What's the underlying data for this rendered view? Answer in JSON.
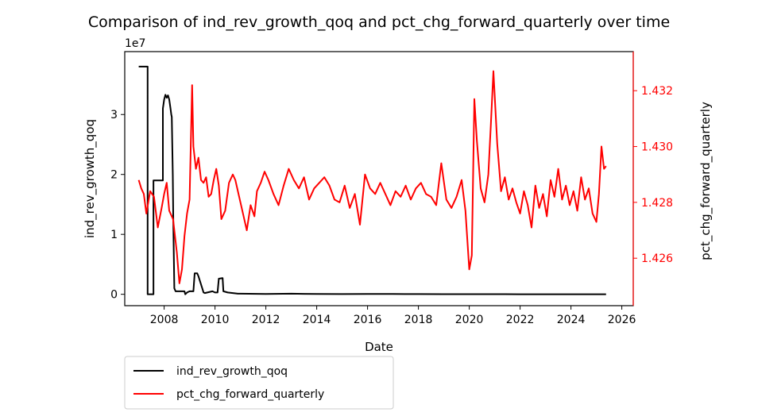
{
  "chart_data": {
    "type": "line",
    "title": "Comparison of ind_rev_growth_qoq and pct_chg_forward_quarterly over time",
    "xlabel": "Date",
    "ylabel_left": "ind_rev_growth_qoq",
    "ylabel_right": "pct_chg_forward_quarterly",
    "left_axis_offset_text": "1e7",
    "xlim": [
      2006.45,
      2026.45
    ],
    "ylim_left": [
      -1.9,
      40.5
    ],
    "ylim_right": [
      1.4243,
      1.4334
    ],
    "x_ticks": [
      "2008",
      "2010",
      "2012",
      "2014",
      "2016",
      "2018",
      "2020",
      "2022",
      "2024",
      "2026"
    ],
    "y_ticks_left": [
      "0",
      "1",
      "2",
      "3"
    ],
    "y_ticks_right": [
      "1.426",
      "1.428",
      "1.430",
      "1.432"
    ],
    "legend_position": "below-left",
    "grid": false,
    "colors": {
      "series_1": "#000000",
      "series_2": "#ff0000",
      "right_axis": "#ff0000"
    },
    "series": [
      {
        "name": "ind_rev_growth_qoq",
        "axis": "left",
        "color": "#000000",
        "x": [
          2007.0,
          2007.35,
          2007.35,
          2007.58,
          2007.58,
          2007.95,
          2007.95,
          2008.0,
          2008.05,
          2008.1,
          2008.15,
          2008.2,
          2008.25,
          2008.28,
          2008.3,
          2008.34,
          2008.36,
          2008.4,
          2008.45,
          2008.8,
          2008.83,
          2008.9,
          2009.0,
          2009.15,
          2009.2,
          2009.3,
          2009.35,
          2009.55,
          2009.6,
          2009.9,
          2010.0,
          2010.1,
          2010.15,
          2010.3,
          2010.33,
          2010.5,
          2010.9,
          2011.0,
          2012.0,
          2013.0,
          2014.0,
          2015.0,
          2016.0,
          2017.0,
          2018.0,
          2019.0,
          2020.0,
          2021.0,
          2022.0,
          2023.0,
          2024.0,
          2025.38
        ],
        "y": [
          38,
          38,
          0,
          0,
          19,
          19,
          31,
          32.5,
          33.3,
          32.8,
          33.2,
          32.5,
          31,
          30,
          29.6,
          20,
          12,
          1,
          0.5,
          0.5,
          0,
          0.3,
          0.5,
          0.5,
          3.5,
          3.5,
          3.0,
          0.3,
          0.2,
          0.5,
          0.3,
          0.3,
          2.6,
          2.7,
          0.5,
          0.3,
          0.1,
          0.1,
          0.05,
          0.1,
          0.05,
          0.03,
          0.05,
          0.05,
          0.03,
          0.02,
          0.02,
          0.02,
          0.01,
          0.01,
          0.01,
          0.01
        ]
      },
      {
        "name": "pct_chg_forward_quarterly",
        "axis": "right",
        "color": "#ff0000",
        "x": [
          2007.0,
          2007.1,
          2007.2,
          2007.3,
          2007.45,
          2007.6,
          2007.75,
          2007.9,
          2008.0,
          2008.1,
          2008.2,
          2008.35,
          2008.5,
          2008.6,
          2008.7,
          2008.8,
          2008.9,
          2009.0,
          2009.1,
          2009.15,
          2009.25,
          2009.35,
          2009.45,
          2009.55,
          2009.65,
          2009.75,
          2009.85,
          2009.95,
          2010.05,
          2010.15,
          2010.25,
          2010.4,
          2010.55,
          2010.7,
          2010.8,
          2010.95,
          2011.1,
          2011.25,
          2011.4,
          2011.55,
          2011.65,
          2011.8,
          2011.95,
          2012.1,
          2012.3,
          2012.5,
          2012.7,
          2012.9,
          2013.1,
          2013.3,
          2013.5,
          2013.7,
          2013.9,
          2014.1,
          2014.3,
          2014.5,
          2014.7,
          2014.9,
          2015.1,
          2015.3,
          2015.5,
          2015.7,
          2015.9,
          2016.1,
          2016.3,
          2016.5,
          2016.7,
          2016.9,
          2017.1,
          2017.3,
          2017.5,
          2017.7,
          2017.9,
          2018.1,
          2018.3,
          2018.5,
          2018.7,
          2018.9,
          2019.1,
          2019.3,
          2019.5,
          2019.7,
          2019.85,
          2020.0,
          2020.1,
          2020.2,
          2020.3,
          2020.45,
          2020.6,
          2020.75,
          2020.85,
          2020.95,
          2021.1,
          2021.25,
          2021.4,
          2021.55,
          2021.7,
          2021.85,
          2022.0,
          2022.15,
          2022.3,
          2022.45,
          2022.6,
          2022.75,
          2022.9,
          2023.05,
          2023.2,
          2023.35,
          2023.5,
          2023.65,
          2023.8,
          2023.95,
          2024.1,
          2024.25,
          2024.4,
          2024.55,
          2024.7,
          2024.85,
          2025.0,
          2025.1,
          2025.2,
          2025.3,
          2025.38
        ],
        "y": [
          1.4288,
          1.4285,
          1.4283,
          1.4276,
          1.4284,
          1.4282,
          1.4271,
          1.4278,
          1.4283,
          1.4287,
          1.4277,
          1.4274,
          1.4262,
          1.4251,
          1.4256,
          1.4268,
          1.4276,
          1.4281,
          1.4322,
          1.43,
          1.4292,
          1.4296,
          1.4288,
          1.4287,
          1.4289,
          1.4282,
          1.4283,
          1.4288,
          1.4292,
          1.4286,
          1.4274,
          1.4277,
          1.4287,
          1.429,
          1.4288,
          1.4282,
          1.4276,
          1.427,
          1.4279,
          1.4275,
          1.4284,
          1.4287,
          1.4291,
          1.4288,
          1.4283,
          1.4279,
          1.4286,
          1.4292,
          1.4288,
          1.4285,
          1.4289,
          1.4281,
          1.4285,
          1.4287,
          1.4289,
          1.4286,
          1.4281,
          1.428,
          1.4286,
          1.4278,
          1.4283,
          1.4272,
          1.429,
          1.4285,
          1.4283,
          1.4287,
          1.4283,
          1.4279,
          1.4284,
          1.4282,
          1.4286,
          1.4281,
          1.4285,
          1.4287,
          1.4283,
          1.4282,
          1.4279,
          1.4294,
          1.4281,
          1.4278,
          1.4282,
          1.4288,
          1.4277,
          1.4256,
          1.4261,
          1.4317,
          1.4302,
          1.4285,
          1.428,
          1.429,
          1.4308,
          1.4327,
          1.4301,
          1.4284,
          1.4289,
          1.4281,
          1.4285,
          1.428,
          1.4276,
          1.4284,
          1.4279,
          1.4271,
          1.4286,
          1.4278,
          1.4283,
          1.4275,
          1.4288,
          1.4282,
          1.4292,
          1.4281,
          1.4286,
          1.4279,
          1.4284,
          1.4277,
          1.4289,
          1.4281,
          1.4285,
          1.4276,
          1.4273,
          1.4283,
          1.43,
          1.4292,
          1.4293
        ]
      }
    ]
  }
}
